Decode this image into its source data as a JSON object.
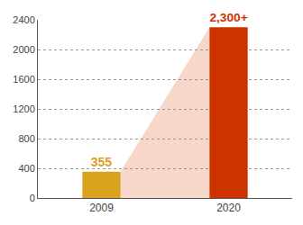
{
  "chart_data": {
    "type": "bar",
    "categories": [
      "2009",
      "2020"
    ],
    "values": [
      355,
      2300
    ],
    "value_labels": [
      "355",
      "2,300+"
    ],
    "colors": [
      "#d9a21f",
      "#cc3300"
    ],
    "ylim": [
      0,
      2400
    ],
    "yticks": [
      0,
      400,
      800,
      1200,
      1600,
      2000,
      2400
    ],
    "grid": true,
    "data_labels": true
  }
}
